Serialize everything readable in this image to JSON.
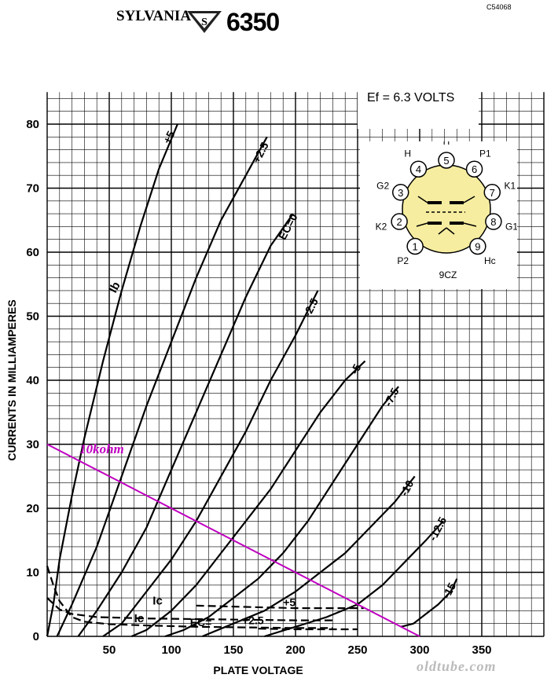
{
  "header": {
    "brand": "SYLVANIA",
    "logo_letter": "S",
    "tube_type": "6350",
    "drawing_ref": "C54068"
  },
  "heater_note": "Ef = 6.3 VOLTS",
  "base": {
    "code": "9CZ",
    "pins": [
      {
        "num": "1",
        "label": "P2"
      },
      {
        "num": "2",
        "label": "K2"
      },
      {
        "num": "3",
        "label": "G2"
      },
      {
        "num": "4",
        "label": "H"
      },
      {
        "num": "5",
        "label": "H"
      },
      {
        "num": "6",
        "label": "P1"
      },
      {
        "num": "7",
        "label": "K1"
      },
      {
        "num": "8",
        "label": "G1"
      },
      {
        "num": "9",
        "label": "Hc"
      }
    ]
  },
  "watermark": "oldtube.com",
  "colors": {
    "load_line": "#c000c0",
    "base_fill": "#f6eda0"
  },
  "chart_data": {
    "type": "line",
    "xlabel": "PLATE VOLTAGE",
    "ylabel": "CURRENTS IN MILLIAMPERES",
    "xlim": [
      0,
      400
    ],
    "ylim": [
      0,
      85
    ],
    "xticks": [
      50,
      100,
      150,
      200,
      250,
      300,
      350
    ],
    "yticks": [
      0,
      10,
      20,
      30,
      40,
      50,
      60,
      70,
      80
    ],
    "grid": true,
    "plate_series_label": "Ib",
    "grid_series_label": "Ic",
    "ec_prefix": "EC=",
    "series": [
      {
        "name": "+5",
        "kind": "plate",
        "points": [
          [
            0,
            0
          ],
          [
            5,
            5
          ],
          [
            10,
            12
          ],
          [
            20,
            22
          ],
          [
            30,
            31
          ],
          [
            45,
            43
          ],
          [
            60,
            54
          ],
          [
            75,
            64
          ],
          [
            90,
            73
          ],
          [
            105,
            80
          ]
        ]
      },
      {
        "name": "+2.5",
        "kind": "plate",
        "points": [
          [
            8,
            0
          ],
          [
            20,
            5
          ],
          [
            40,
            14
          ],
          [
            60,
            25
          ],
          [
            80,
            36
          ],
          [
            100,
            46
          ],
          [
            120,
            56
          ],
          [
            140,
            65
          ],
          [
            160,
            72
          ],
          [
            177,
            78
          ]
        ]
      },
      {
        "name": "0",
        "kind": "plate",
        "points": [
          [
            25,
            0
          ],
          [
            40,
            4
          ],
          [
            60,
            10
          ],
          [
            80,
            17
          ],
          [
            100,
            26
          ],
          [
            120,
            35
          ],
          [
            140,
            44
          ],
          [
            160,
            53
          ],
          [
            180,
            61
          ],
          [
            198,
            66
          ]
        ]
      },
      {
        "name": "-2.5",
        "kind": "plate",
        "points": [
          [
            45,
            0
          ],
          [
            60,
            2
          ],
          [
            80,
            7
          ],
          [
            100,
            12
          ],
          [
            120,
            18
          ],
          [
            140,
            25
          ],
          [
            160,
            32
          ],
          [
            180,
            40
          ],
          [
            200,
            47
          ],
          [
            218,
            54
          ]
        ]
      },
      {
        "name": "-5",
        "kind": "plate",
        "points": [
          [
            68,
            0
          ],
          [
            80,
            1
          ],
          [
            100,
            4
          ],
          [
            120,
            8
          ],
          [
            140,
            13
          ],
          [
            160,
            18
          ],
          [
            180,
            23
          ],
          [
            200,
            29
          ],
          [
            220,
            35
          ],
          [
            240,
            40
          ],
          [
            256,
            43
          ]
        ]
      },
      {
        "name": "-7.5",
        "kind": "plate",
        "points": [
          [
            95,
            0
          ],
          [
            110,
            1
          ],
          [
            130,
            3
          ],
          [
            150,
            6
          ],
          [
            170,
            9
          ],
          [
            190,
            13
          ],
          [
            210,
            18
          ],
          [
            230,
            24
          ],
          [
            250,
            30
          ],
          [
            270,
            36
          ],
          [
            283,
            39
          ]
        ]
      },
      {
        "name": "-10",
        "kind": "plate",
        "points": [
          [
            125,
            0
          ],
          [
            150,
            2
          ],
          [
            175,
            4
          ],
          [
            200,
            7
          ],
          [
            220,
            10
          ],
          [
            240,
            13
          ],
          [
            260,
            17
          ],
          [
            280,
            21
          ],
          [
            296,
            25
          ]
        ]
      },
      {
        "name": "-12.5",
        "kind": "plate",
        "points": [
          [
            175,
            0
          ],
          [
            200,
            1.5
          ],
          [
            225,
            3
          ],
          [
            250,
            5
          ],
          [
            270,
            8
          ],
          [
            290,
            12
          ],
          [
            305,
            15
          ],
          [
            319,
            18
          ]
        ]
      },
      {
        "name": "-15",
        "kind": "plate",
        "points": [
          [
            285,
            1.5
          ],
          [
            295,
            2
          ],
          [
            305,
            3.5
          ],
          [
            315,
            5
          ],
          [
            325,
            7
          ],
          [
            330,
            9
          ]
        ]
      },
      {
        "name": "Ic +5",
        "kind": "grid",
        "points": [
          [
            0,
            6
          ],
          [
            10,
            4.2
          ],
          [
            20,
            3.5
          ],
          [
            40,
            3
          ],
          [
            80,
            2.8
          ],
          [
            120,
            2.7
          ],
          [
            160,
            2.6
          ],
          [
            200,
            2.5
          ],
          [
            230,
            2.5
          ]
        ]
      },
      {
        "name": "Ic +2.5",
        "kind": "grid",
        "points": [
          [
            0,
            11
          ],
          [
            5,
            8
          ],
          [
            10,
            5.5
          ],
          [
            20,
            3
          ],
          [
            30,
            2.3
          ],
          [
            50,
            1.9
          ],
          [
            80,
            1.7
          ],
          [
            120,
            1.5
          ],
          [
            160,
            1.4
          ],
          [
            200,
            1.3
          ],
          [
            230,
            1.3
          ]
        ]
      },
      {
        "name": "Ic EC=+5 lower",
        "kind": "grid",
        "points": [
          [
            120,
            4.8
          ],
          [
            160,
            4.6
          ],
          [
            200,
            4.4
          ],
          [
            240,
            4.4
          ],
          [
            255,
            4.4
          ]
        ]
      },
      {
        "name": "Ic EC=+2.5 lower",
        "kind": "grid",
        "points": [
          [
            170,
            1.2
          ],
          [
            200,
            1.1
          ],
          [
            230,
            1.1
          ],
          [
            250,
            1.1
          ]
        ]
      }
    ],
    "load_line": {
      "name": "10kohm",
      "points": [
        [
          0,
          30
        ],
        [
          300,
          0
        ]
      ]
    },
    "curve_labels": [
      {
        "text": "+5",
        "x": 106,
        "y": 79
      },
      {
        "text": "+2.5",
        "x": 178,
        "y": 76
      },
      {
        "text": "0",
        "x": 199,
        "y": 64
      },
      {
        "text": "-2.5",
        "x": 219,
        "y": 52
      },
      {
        "text": "-5",
        "x": 257,
        "y": 43
      },
      {
        "text": "-7.5",
        "x": 284,
        "y": 38
      },
      {
        "text": "-10",
        "x": 297,
        "y": 24
      },
      {
        "text": "-12.5",
        "x": 320,
        "y": 17
      },
      {
        "text": "-15",
        "x": 331,
        "y": 8
      }
    ]
  }
}
